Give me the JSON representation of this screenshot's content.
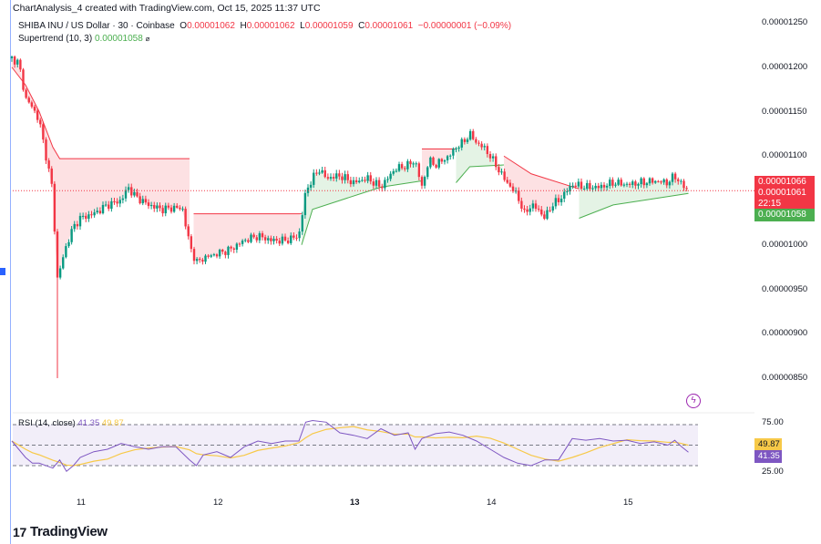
{
  "header": {
    "title": "ChartAnalysis_4 created with TradingView.com, Oct 15, 2025 11:37 UTC"
  },
  "legend": {
    "symbol": "SHIBA INU / US Dollar · 30 · Coinbase",
    "o_label": "O",
    "o": "0.00001062",
    "h_label": "H",
    "h": "0.00001062",
    "l_label": "L",
    "l": "0.00001059",
    "c_label": "C",
    "c": "0.00001061",
    "change": "−0.00000001 (−0.09%)",
    "supertrend_label": "Supertrend (10, 3)",
    "supertrend_value": "0.00001058"
  },
  "rsi_legend": {
    "label": "RSI (14, close)",
    "rsi": "41.35",
    "ma": "49.87"
  },
  "price_axis": [
    "0.00001250",
    "0.00001200",
    "0.00001150",
    "0.00001100",
    "0.00001000",
    "0.00000950",
    "0.00000900",
    "0.00000850"
  ],
  "price_badges": {
    "high": "0.00001066",
    "last": "0.00001061",
    "countdown": "22:15",
    "supertrend": "0.00001058"
  },
  "rsi_axis": {
    "upper": "75.00",
    "lower": "25.00",
    "ma_badge": "49.87",
    "rsi_badge": "41.35"
  },
  "time_axis": [
    "11",
    "12",
    "13",
    "14",
    "15"
  ],
  "brand": "TradingView",
  "colors": {
    "up": "#089981",
    "down": "#f23645",
    "st_up": "#4caf50",
    "st_down": "#f23645",
    "rsi": "#7e57c2",
    "rsi_ma": "#f7c948"
  },
  "chart_data": {
    "type": "candlestick",
    "title": "SHIBA INU / US Dollar · 30 · Coinbase",
    "price_unit": "1e-8 USD",
    "ylim": [
      850,
      1250
    ],
    "x_unit": "day of October 2025",
    "close": [
      [
        10.5,
        1210
      ],
      [
        10.55,
        1205
      ],
      [
        10.6,
        1165
      ],
      [
        10.65,
        1155
      ],
      [
        10.7,
        1140
      ],
      [
        10.75,
        1100
      ],
      [
        10.8,
        1060
      ],
      [
        10.83,
        960
      ],
      [
        10.9,
        1000
      ],
      [
        10.95,
        1020
      ],
      [
        11.0,
        1030
      ],
      [
        11.1,
        1035
      ],
      [
        11.2,
        1045
      ],
      [
        11.3,
        1050
      ],
      [
        11.35,
        1065
      ],
      [
        11.4,
        1055
      ],
      [
        11.5,
        1045
      ],
      [
        11.6,
        1040
      ],
      [
        11.7,
        1042
      ],
      [
        11.75,
        1040
      ],
      [
        11.8,
        1000
      ],
      [
        11.85,
        980
      ],
      [
        11.9,
        985
      ],
      [
        12.0,
        990
      ],
      [
        12.1,
        995
      ],
      [
        12.2,
        1005
      ],
      [
        12.3,
        1010
      ],
      [
        12.4,
        1005
      ],
      [
        12.5,
        1005
      ],
      [
        12.6,
        1010
      ],
      [
        12.65,
        1060
      ],
      [
        12.7,
        1075
      ],
      [
        12.75,
        1085
      ],
      [
        12.8,
        1075
      ],
      [
        12.9,
        1078
      ],
      [
        13.0,
        1070
      ],
      [
        13.1,
        1075
      ],
      [
        13.2,
        1065
      ],
      [
        13.3,
        1085
      ],
      [
        13.4,
        1090
      ],
      [
        13.45,
        1095
      ],
      [
        13.5,
        1065
      ],
      [
        13.55,
        1095
      ],
      [
        13.6,
        1090
      ],
      [
        13.7,
        1100
      ],
      [
        13.75,
        1110
      ],
      [
        13.8,
        1115
      ],
      [
        13.85,
        1125
      ],
      [
        13.9,
        1115
      ],
      [
        13.95,
        1110
      ],
      [
        14.0,
        1100
      ],
      [
        14.1,
        1075
      ],
      [
        14.2,
        1055
      ],
      [
        14.25,
        1035
      ],
      [
        14.3,
        1045
      ],
      [
        14.35,
        1040
      ],
      [
        14.4,
        1030
      ],
      [
        14.45,
        1045
      ],
      [
        14.5,
        1050
      ],
      [
        14.6,
        1068
      ],
      [
        14.7,
        1065
      ],
      [
        14.8,
        1065
      ],
      [
        14.9,
        1070
      ],
      [
        15.0,
        1068
      ],
      [
        15.1,
        1070
      ],
      [
        15.2,
        1072
      ],
      [
        15.3,
        1070
      ],
      [
        15.35,
        1078
      ],
      [
        15.4,
        1068
      ],
      [
        15.45,
        1061
      ]
    ],
    "spike_low": [
      10.83,
      850
    ],
    "supertrend": [
      {
        "trend": "down",
        "points": [
          [
            10.5,
            1200
          ],
          [
            10.6,
            1180
          ],
          [
            10.7,
            1150
          ],
          [
            10.8,
            1110
          ],
          [
            10.85,
            1097
          ],
          [
            11.8,
            1097
          ]
        ]
      },
      {
        "trend": "down",
        "points": [
          [
            11.83,
            1035
          ],
          [
            12.62,
            1035
          ]
        ]
      },
      {
        "trend": "up",
        "points": [
          [
            12.62,
            1000
          ],
          [
            12.7,
            1040
          ],
          [
            12.9,
            1050
          ],
          [
            13.2,
            1065
          ],
          [
            13.5,
            1072
          ]
        ]
      },
      {
        "trend": "down",
        "points": [
          [
            13.5,
            1108
          ],
          [
            13.75,
            1108
          ]
        ]
      },
      {
        "trend": "up",
        "points": [
          [
            13.75,
            1070
          ],
          [
            13.85,
            1088
          ],
          [
            14.1,
            1090
          ]
        ]
      },
      {
        "trend": "down",
        "points": [
          [
            14.1,
            1100
          ],
          [
            14.3,
            1080
          ],
          [
            14.65,
            1063
          ]
        ]
      },
      {
        "trend": "up",
        "points": [
          [
            14.65,
            1030
          ],
          [
            14.9,
            1045
          ],
          [
            15.2,
            1052
          ],
          [
            15.45,
            1058
          ]
        ]
      }
    ],
    "rsi": [
      [
        10.5,
        55
      ],
      [
        10.55,
        45
      ],
      [
        10.6,
        35
      ],
      [
        10.65,
        28
      ],
      [
        10.7,
        28
      ],
      [
        10.8,
        22
      ],
      [
        10.85,
        32
      ],
      [
        10.9,
        18
      ],
      [
        10.95,
        25
      ],
      [
        11.0,
        35
      ],
      [
        11.1,
        42
      ],
      [
        11.2,
        45
      ],
      [
        11.3,
        52
      ],
      [
        11.4,
        48
      ],
      [
        11.5,
        45
      ],
      [
        11.6,
        48
      ],
      [
        11.7,
        48
      ],
      [
        11.8,
        32
      ],
      [
        11.85,
        25
      ],
      [
        11.9,
        38
      ],
      [
        12.0,
        42
      ],
      [
        12.1,
        35
      ],
      [
        12.2,
        48
      ],
      [
        12.3,
        55
      ],
      [
        12.4,
        52
      ],
      [
        12.5,
        55
      ],
      [
        12.6,
        55
      ],
      [
        12.65,
        78
      ],
      [
        12.7,
        80
      ],
      [
        12.8,
        78
      ],
      [
        12.9,
        65
      ],
      [
        13.0,
        62
      ],
      [
        13.1,
        58
      ],
      [
        13.2,
        70
      ],
      [
        13.3,
        62
      ],
      [
        13.4,
        65
      ],
      [
        13.45,
        45
      ],
      [
        13.5,
        58
      ],
      [
        13.6,
        64
      ],
      [
        13.7,
        66
      ],
      [
        13.8,
        62
      ],
      [
        13.9,
        55
      ],
      [
        14.0,
        45
      ],
      [
        14.1,
        35
      ],
      [
        14.2,
        28
      ],
      [
        14.3,
        25
      ],
      [
        14.4,
        32
      ],
      [
        14.5,
        32
      ],
      [
        14.6,
        58
      ],
      [
        14.7,
        56
      ],
      [
        14.8,
        58
      ],
      [
        14.9,
        55
      ],
      [
        15.0,
        56
      ],
      [
        15.1,
        52
      ],
      [
        15.2,
        54
      ],
      [
        15.3,
        50
      ],
      [
        15.35,
        56
      ],
      [
        15.4,
        48
      ],
      [
        15.45,
        41.35
      ]
    ],
    "rsi_levels": [
      25,
      50,
      75
    ]
  }
}
